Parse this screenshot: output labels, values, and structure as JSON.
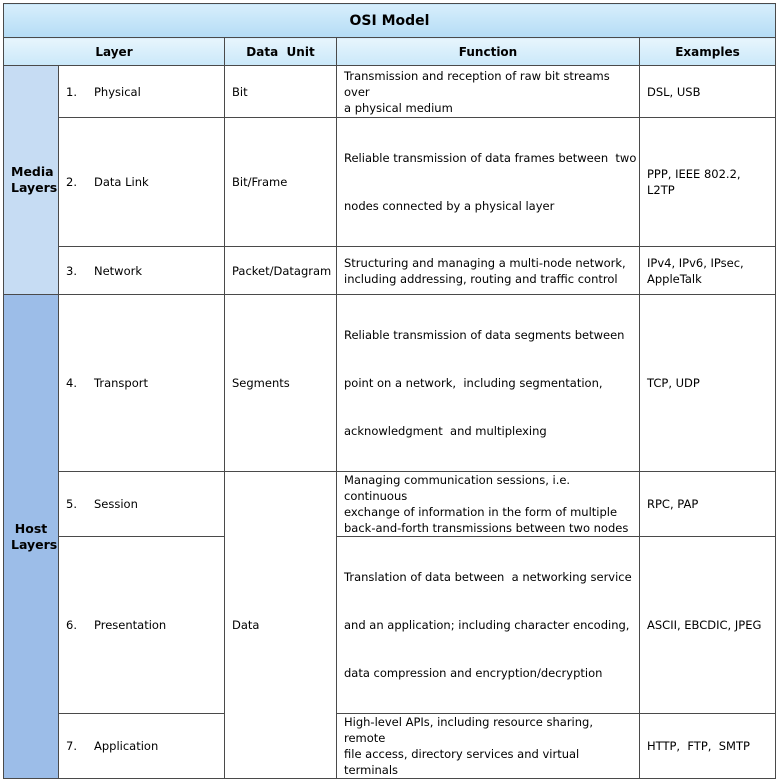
{
  "title": "OSI Model",
  "headers": {
    "layer": "Layer",
    "data_unit": "Data  Unit",
    "function": "Function",
    "examples": "Examples"
  },
  "groups": {
    "media": [
      "Media",
      "Layers"
    ],
    "host": [
      "Host",
      "Layers"
    ]
  },
  "rows": [
    {
      "num": "1.",
      "name": "Physical",
      "unit": "Bit",
      "function": [
        "Transmission and reception of raw bit streams over",
        "a physical medium"
      ],
      "examples": [
        "DSL, USB"
      ]
    },
    {
      "num": "2.",
      "name": "Data Link",
      "unit": "Bit/Frame",
      "function": [
        "Reliable transmission of data frames between  two",
        "nodes connected by a physical layer"
      ],
      "examples": [
        "PPP, IEEE 802.2, L2TP"
      ]
    },
    {
      "num": "3.",
      "name": "Network",
      "unit": "Packet/Datagram",
      "function": [
        "Structuring and managing a multi-node network,",
        "including addressing, routing and traffic control"
      ],
      "examples": [
        "IPv4, IPv6, IPsec,",
        "AppleTalk"
      ]
    },
    {
      "num": "4.",
      "name": "Transport",
      "unit": "Segments",
      "function": [
        "Reliable transmission of data segments between",
        "point on a network,  including segmentation,",
        "acknowledgment  and multiplexing"
      ],
      "examples": [
        "TCP, UDP"
      ]
    },
    {
      "num": "5.",
      "name": "Session",
      "unit": "",
      "function": [
        "Managing communication sessions, i.e. continuous",
        "exchange of information in the form of multiple",
        "back-and-forth transmissions between two nodes"
      ],
      "examples": [
        "RPC, PAP"
      ]
    },
    {
      "num": "6.",
      "name": "Presentation",
      "unit": "Data",
      "function": [
        "Translation of data between  a networking service",
        "and an application; including character encoding,",
        "data compression and encryption/decryption"
      ],
      "examples": [
        "ASCII, EBCDIC, JPEG"
      ]
    },
    {
      "num": "7.",
      "name": "Application",
      "unit": "",
      "function": [
        "High-level APIs, including resource sharing, remote",
        "file access, directory services and virtual terminals"
      ],
      "examples": [
        "HTTP,  FTP,  SMTP"
      ]
    }
  ],
  "colors": {
    "title_bg": "#c4e4f8",
    "header_bg": "#d8eefb",
    "media_bg": "#c6dcf3",
    "host_bg": "#9cbde8",
    "border": "#4a4a4a"
  }
}
